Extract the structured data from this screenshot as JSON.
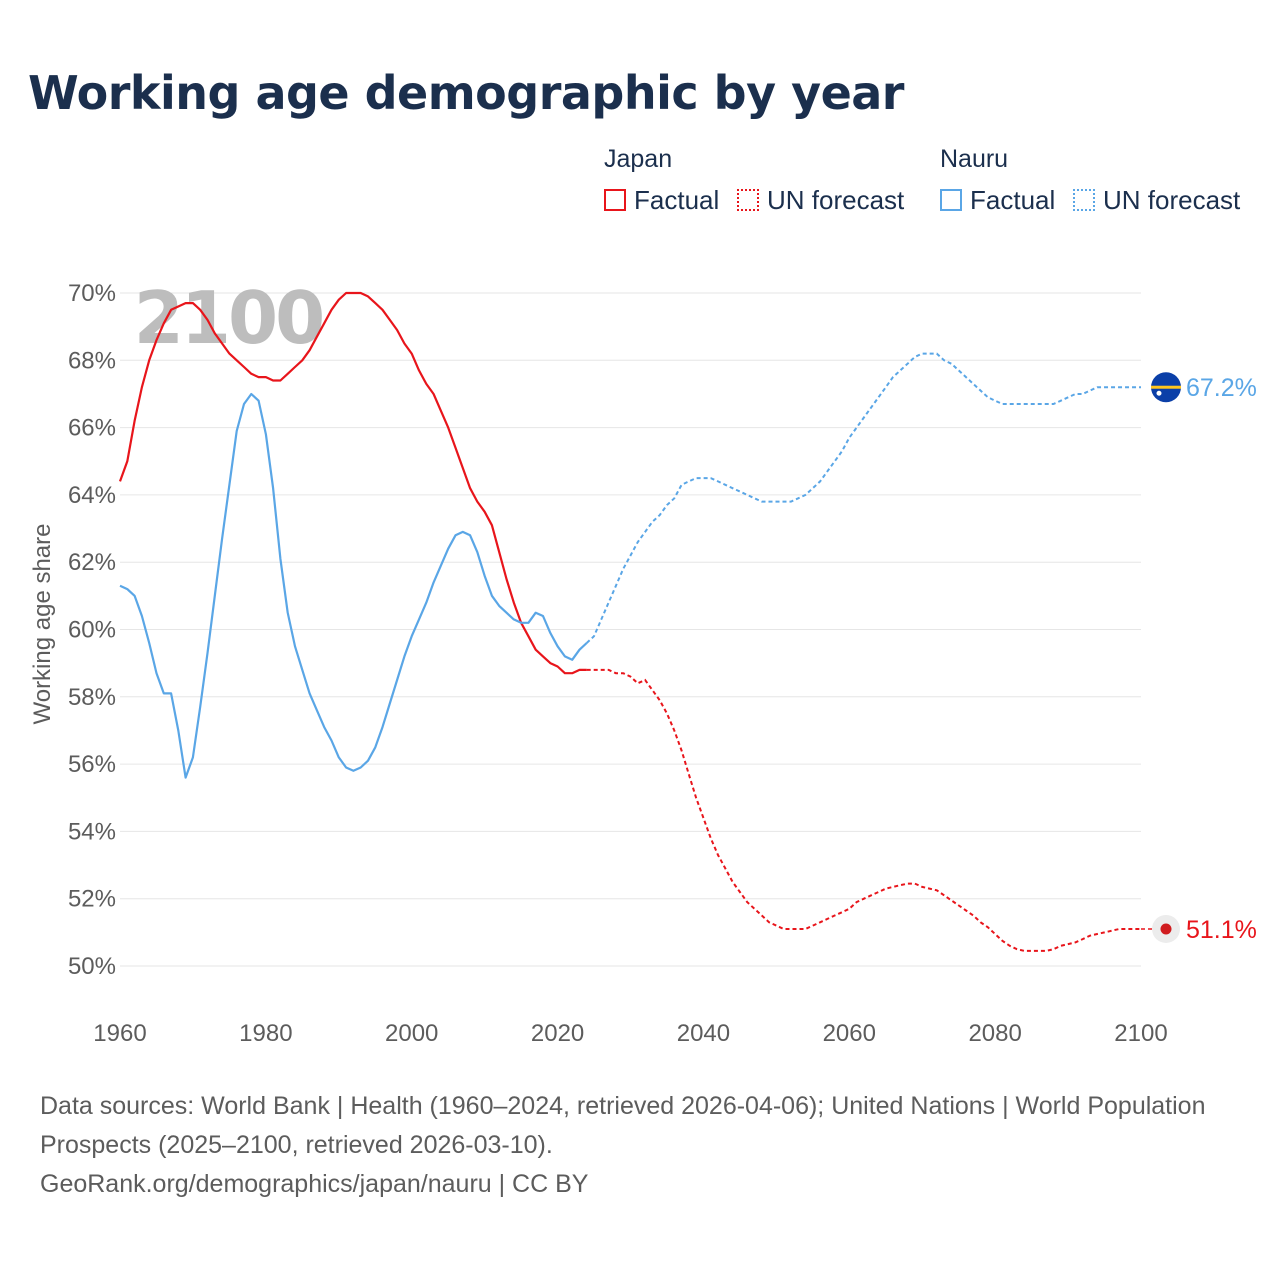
{
  "title": "Working age demographic by year",
  "legend": {
    "groups": [
      {
        "name": "Japan",
        "factual_label": "Factual",
        "forecast_label": "UN forecast",
        "color": "#e8151b"
      },
      {
        "name": "Nauru",
        "factual_label": "Factual",
        "forecast_label": "UN forecast",
        "color": "#5aa6e6"
      }
    ]
  },
  "year_watermark": "2100",
  "footer": {
    "sources": "Data sources: World Bank | Health (1960–2024, retrieved 2026-04-06); United Nations | World Population Prospects (2025–2100, retrieved 2026-03-10).",
    "attribution": "GeoRank.org/demographics/japan/nauru | CC BY"
  },
  "chart_data": {
    "type": "line",
    "title": "Working age demographic by year",
    "xlabel": "",
    "ylabel": "Working age share",
    "xlim": [
      1960,
      2100
    ],
    "ylim": [
      49,
      70.5
    ],
    "x_ticks": [
      1960,
      1980,
      2000,
      2020,
      2040,
      2060,
      2080,
      2100
    ],
    "x_tick_labels": [
      "1960",
      "1980",
      "2000",
      "2020",
      "2040",
      "2060",
      "2080",
      "2100"
    ],
    "y_ticks": [
      50,
      52,
      54,
      56,
      58,
      60,
      62,
      64,
      66,
      68,
      70
    ],
    "y_tick_labels": [
      "50%",
      "52%",
      "54%",
      "56%",
      "58%",
      "60%",
      "62%",
      "64%",
      "66%",
      "68%",
      "70%"
    ],
    "grid": true,
    "series": [
      {
        "name": "Japan",
        "color": "#e8151b",
        "end_label": "51.1%",
        "end_value": 51.1,
        "factual": [
          [
            1960,
            64.4
          ],
          [
            1961,
            65.0
          ],
          [
            1962,
            66.2
          ],
          [
            1963,
            67.2
          ],
          [
            1964,
            68.0
          ],
          [
            1965,
            68.6
          ],
          [
            1966,
            69.1
          ],
          [
            1967,
            69.5
          ],
          [
            1968,
            69.6
          ],
          [
            1969,
            69.7
          ],
          [
            1970,
            69.7
          ],
          [
            1971,
            69.5
          ],
          [
            1972,
            69.2
          ],
          [
            1973,
            68.8
          ],
          [
            1974,
            68.5
          ],
          [
            1975,
            68.2
          ],
          [
            1976,
            68.0
          ],
          [
            1977,
            67.8
          ],
          [
            1978,
            67.6
          ],
          [
            1979,
            67.5
          ],
          [
            1980,
            67.5
          ],
          [
            1981,
            67.4
          ],
          [
            1982,
            67.4
          ],
          [
            1983,
            67.6
          ],
          [
            1984,
            67.8
          ],
          [
            1985,
            68.0
          ],
          [
            1986,
            68.3
          ],
          [
            1987,
            68.7
          ],
          [
            1988,
            69.1
          ],
          [
            1989,
            69.5
          ],
          [
            1990,
            69.8
          ],
          [
            1991,
            70.0
          ],
          [
            1992,
            70.0
          ],
          [
            1993,
            70.0
          ],
          [
            1994,
            69.9
          ],
          [
            1995,
            69.7
          ],
          [
            1996,
            69.5
          ],
          [
            1997,
            69.2
          ],
          [
            1998,
            68.9
          ],
          [
            1999,
            68.5
          ],
          [
            2000,
            68.2
          ],
          [
            2001,
            67.7
          ],
          [
            2002,
            67.3
          ],
          [
            2003,
            67.0
          ],
          [
            2004,
            66.5
          ],
          [
            2005,
            66.0
          ],
          [
            2006,
            65.4
          ],
          [
            2007,
            64.8
          ],
          [
            2008,
            64.2
          ],
          [
            2009,
            63.8
          ],
          [
            2010,
            63.5
          ],
          [
            2011,
            63.1
          ],
          [
            2012,
            62.3
          ],
          [
            2013,
            61.5
          ],
          [
            2014,
            60.8
          ],
          [
            2015,
            60.2
          ],
          [
            2016,
            59.8
          ],
          [
            2017,
            59.4
          ],
          [
            2018,
            59.2
          ],
          [
            2019,
            59.0
          ],
          [
            2020,
            58.9
          ],
          [
            2021,
            58.7
          ],
          [
            2022,
            58.7
          ],
          [
            2023,
            58.8
          ],
          [
            2024,
            58.8
          ]
        ],
        "forecast": [
          [
            2024,
            58.8
          ],
          [
            2025,
            58.8
          ],
          [
            2026,
            58.8
          ],
          [
            2027,
            58.8
          ],
          [
            2028,
            58.7
          ],
          [
            2029,
            58.7
          ],
          [
            2030,
            58.6
          ],
          [
            2031,
            58.4
          ],
          [
            2032,
            58.5
          ],
          [
            2033,
            58.2
          ],
          [
            2034,
            57.9
          ],
          [
            2035,
            57.5
          ],
          [
            2036,
            57.0
          ],
          [
            2037,
            56.4
          ],
          [
            2038,
            55.7
          ],
          [
            2039,
            55.0
          ],
          [
            2040,
            54.4
          ],
          [
            2041,
            53.8
          ],
          [
            2042,
            53.3
          ],
          [
            2043,
            52.9
          ],
          [
            2044,
            52.5
          ],
          [
            2045,
            52.2
          ],
          [
            2046,
            51.9
          ],
          [
            2047,
            51.7
          ],
          [
            2048,
            51.5
          ],
          [
            2049,
            51.3
          ],
          [
            2050,
            51.2
          ],
          [
            2051,
            51.1
          ],
          [
            2052,
            51.1
          ],
          [
            2053,
            51.1
          ],
          [
            2054,
            51.1
          ],
          [
            2055,
            51.2
          ],
          [
            2056,
            51.3
          ],
          [
            2057,
            51.4
          ],
          [
            2058,
            51.5
          ],
          [
            2059,
            51.6
          ],
          [
            2060,
            51.7
          ],
          [
            2061,
            51.9
          ],
          [
            2062,
            52.0
          ],
          [
            2063,
            52.1
          ],
          [
            2064,
            52.2
          ],
          [
            2065,
            52.3
          ],
          [
            2066,
            52.35
          ],
          [
            2067,
            52.4
          ],
          [
            2068,
            52.45
          ],
          [
            2069,
            52.45
          ],
          [
            2070,
            52.35
          ],
          [
            2071,
            52.3
          ],
          [
            2072,
            52.25
          ],
          [
            2073,
            52.1
          ],
          [
            2074,
            51.95
          ],
          [
            2075,
            51.8
          ],
          [
            2076,
            51.65
          ],
          [
            2077,
            51.5
          ],
          [
            2078,
            51.3
          ],
          [
            2079,
            51.15
          ],
          [
            2080,
            50.95
          ],
          [
            2081,
            50.75
          ],
          [
            2082,
            50.6
          ],
          [
            2083,
            50.5
          ],
          [
            2084,
            50.45
          ],
          [
            2085,
            50.45
          ],
          [
            2086,
            50.45
          ],
          [
            2087,
            50.45
          ],
          [
            2088,
            50.5
          ],
          [
            2089,
            50.6
          ],
          [
            2090,
            50.65
          ],
          [
            2091,
            50.7
          ],
          [
            2092,
            50.8
          ],
          [
            2093,
            50.9
          ],
          [
            2094,
            50.95
          ],
          [
            2095,
            51.0
          ],
          [
            2096,
            51.05
          ],
          [
            2097,
            51.1
          ],
          [
            2098,
            51.1
          ],
          [
            2099,
            51.1
          ],
          [
            2100,
            51.1
          ]
        ]
      },
      {
        "name": "Nauru",
        "color": "#5aa6e6",
        "end_label": "67.2%",
        "end_value": 67.2,
        "factual": [
          [
            1960,
            61.3
          ],
          [
            1961,
            61.2
          ],
          [
            1962,
            61.0
          ],
          [
            1963,
            60.4
          ],
          [
            1964,
            59.6
          ],
          [
            1965,
            58.7
          ],
          [
            1966,
            58.1
          ],
          [
            1967,
            58.1
          ],
          [
            1968,
            57.0
          ],
          [
            1969,
            55.6
          ],
          [
            1970,
            56.2
          ],
          [
            1971,
            57.7
          ],
          [
            1972,
            59.3
          ],
          [
            1973,
            61.0
          ],
          [
            1974,
            62.7
          ],
          [
            1975,
            64.3
          ],
          [
            1976,
            65.9
          ],
          [
            1977,
            66.7
          ],
          [
            1978,
            67.0
          ],
          [
            1979,
            66.8
          ],
          [
            1980,
            65.8
          ],
          [
            1981,
            64.2
          ],
          [
            1982,
            62.1
          ],
          [
            1983,
            60.5
          ],
          [
            1984,
            59.5
          ],
          [
            1985,
            58.8
          ],
          [
            1986,
            58.1
          ],
          [
            1987,
            57.6
          ],
          [
            1988,
            57.1
          ],
          [
            1989,
            56.7
          ],
          [
            1990,
            56.2
          ],
          [
            1991,
            55.9
          ],
          [
            1992,
            55.8
          ],
          [
            1993,
            55.9
          ],
          [
            1994,
            56.1
          ],
          [
            1995,
            56.5
          ],
          [
            1996,
            57.1
          ],
          [
            1997,
            57.8
          ],
          [
            1998,
            58.5
          ],
          [
            1999,
            59.2
          ],
          [
            2000,
            59.8
          ],
          [
            2001,
            60.3
          ],
          [
            2002,
            60.8
          ],
          [
            2003,
            61.4
          ],
          [
            2004,
            61.9
          ],
          [
            2005,
            62.4
          ],
          [
            2006,
            62.8
          ],
          [
            2007,
            62.9
          ],
          [
            2008,
            62.8
          ],
          [
            2009,
            62.3
          ],
          [
            2010,
            61.6
          ],
          [
            2011,
            61.0
          ],
          [
            2012,
            60.7
          ],
          [
            2013,
            60.5
          ],
          [
            2014,
            60.3
          ],
          [
            2015,
            60.2
          ],
          [
            2016,
            60.2
          ],
          [
            2017,
            60.5
          ],
          [
            2018,
            60.4
          ],
          [
            2019,
            59.9
          ],
          [
            2020,
            59.5
          ],
          [
            2021,
            59.2
          ],
          [
            2022,
            59.1
          ],
          [
            2023,
            59.4
          ],
          [
            2024,
            59.6
          ]
        ],
        "forecast": [
          [
            2024,
            59.6
          ],
          [
            2025,
            59.8
          ],
          [
            2026,
            60.3
          ],
          [
            2027,
            60.8
          ],
          [
            2028,
            61.3
          ],
          [
            2029,
            61.8
          ],
          [
            2030,
            62.2
          ],
          [
            2031,
            62.6
          ],
          [
            2032,
            62.9
          ],
          [
            2033,
            63.2
          ],
          [
            2034,
            63.4
          ],
          [
            2035,
            63.7
          ],
          [
            2036,
            63.9
          ],
          [
            2037,
            64.3
          ],
          [
            2038,
            64.4
          ],
          [
            2039,
            64.5
          ],
          [
            2040,
            64.5
          ],
          [
            2041,
            64.5
          ],
          [
            2042,
            64.4
          ],
          [
            2043,
            64.3
          ],
          [
            2044,
            64.2
          ],
          [
            2045,
            64.1
          ],
          [
            2046,
            64.0
          ],
          [
            2047,
            63.9
          ],
          [
            2048,
            63.8
          ],
          [
            2049,
            63.8
          ],
          [
            2050,
            63.8
          ],
          [
            2051,
            63.8
          ],
          [
            2052,
            63.8
          ],
          [
            2053,
            63.9
          ],
          [
            2054,
            64.0
          ],
          [
            2055,
            64.2
          ],
          [
            2056,
            64.4
          ],
          [
            2057,
            64.7
          ],
          [
            2058,
            65.0
          ],
          [
            2059,
            65.3
          ],
          [
            2060,
            65.7
          ],
          [
            2061,
            66.0
          ],
          [
            2062,
            66.3
          ],
          [
            2063,
            66.6
          ],
          [
            2064,
            66.9
          ],
          [
            2065,
            67.2
          ],
          [
            2066,
            67.5
          ],
          [
            2067,
            67.7
          ],
          [
            2068,
            67.9
          ],
          [
            2069,
            68.1
          ],
          [
            2070,
            68.2
          ],
          [
            2071,
            68.2
          ],
          [
            2072,
            68.2
          ],
          [
            2073,
            68.0
          ],
          [
            2074,
            67.9
          ],
          [
            2075,
            67.7
          ],
          [
            2076,
            67.5
          ],
          [
            2077,
            67.3
          ],
          [
            2078,
            67.1
          ],
          [
            2079,
            66.9
          ],
          [
            2080,
            66.8
          ],
          [
            2081,
            66.7
          ],
          [
            2082,
            66.7
          ],
          [
            2083,
            66.7
          ],
          [
            2084,
            66.7
          ],
          [
            2085,
            66.7
          ],
          [
            2086,
            66.7
          ],
          [
            2087,
            66.7
          ],
          [
            2088,
            66.7
          ],
          [
            2089,
            66.8
          ],
          [
            2090,
            66.9
          ],
          [
            2091,
            67.0
          ],
          [
            2092,
            67.0
          ],
          [
            2093,
            67.1
          ],
          [
            2094,
            67.2
          ],
          [
            2095,
            67.2
          ],
          [
            2096,
            67.2
          ],
          [
            2097,
            67.2
          ],
          [
            2098,
            67.2
          ],
          [
            2099,
            67.2
          ],
          [
            2100,
            67.2
          ]
        ]
      }
    ]
  }
}
